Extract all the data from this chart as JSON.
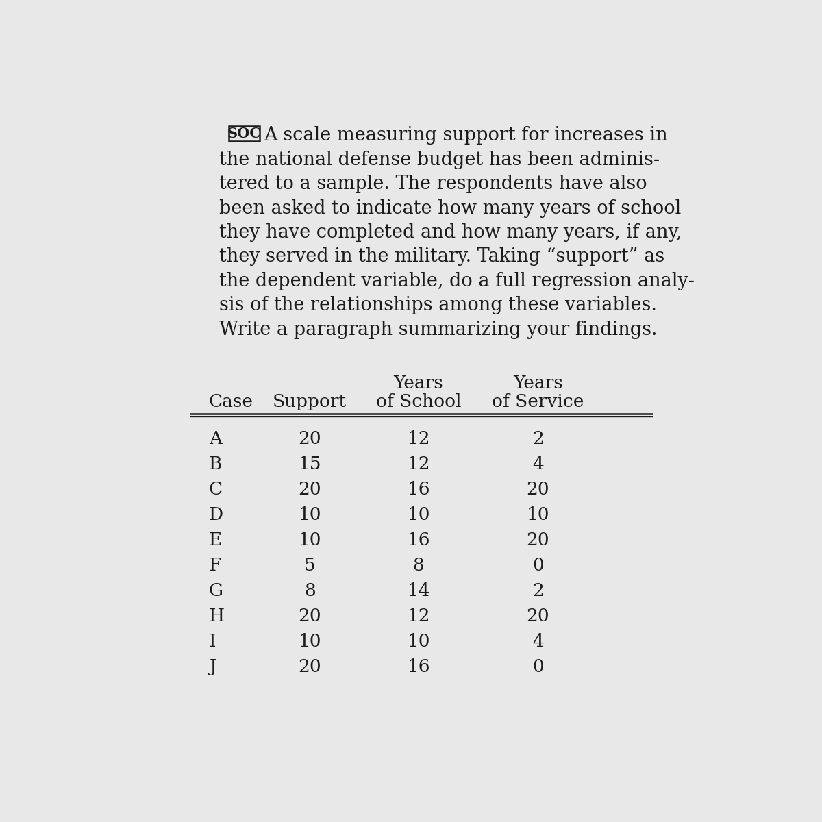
{
  "soc_label": "SOC",
  "paragraph_lines": [
    "A scale measuring support for increases in",
    "the national defense budget has been adminis-",
    "tered to a sample. The respondents have also",
    "been asked to indicate how many years of school",
    "they have completed and how many years, if any,",
    "they served in the military. Taking “support” as",
    "the dependent variable, do a full regression analy-",
    "sis of the relationships among these variables.",
    "Write a paragraph summarizing your findings."
  ],
  "rows": [
    [
      "A",
      "20",
      "12",
      "2"
    ],
    [
      "B",
      "15",
      "12",
      "4"
    ],
    [
      "C",
      "20",
      "16",
      "20"
    ],
    [
      "D",
      "10",
      "10",
      "10"
    ],
    [
      "E",
      "10",
      "16",
      "20"
    ],
    [
      "F",
      "5",
      "8",
      "0"
    ],
    [
      "G",
      "8",
      "14",
      "2"
    ],
    [
      "H",
      "20",
      "12",
      "20"
    ],
    [
      "I",
      "10",
      "10",
      "4"
    ],
    [
      "J",
      "20",
      "16",
      "0"
    ]
  ],
  "bg_color": "#e8e8e8",
  "text_color": "#1c1c1c",
  "font_size_paragraph": 19.5,
  "font_size_table": 19.0,
  "font_size_header": 19.0,
  "font_size_soc": 15.0
}
